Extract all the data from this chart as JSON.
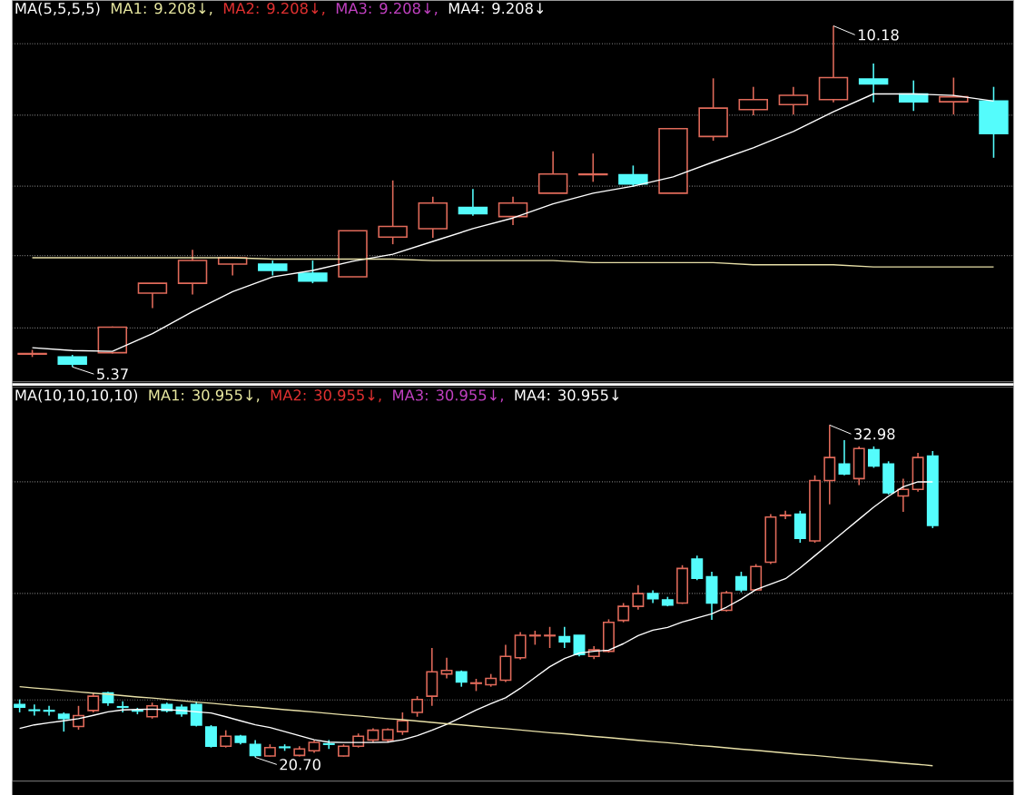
{
  "chart_data": [
    {
      "type": "candlestick",
      "title": "MA(5,5,5,5)",
      "annotations": [
        "MA1: 9.208↓,",
        "MA2: 9.208↓,",
        "MA3: 9.208↓,",
        "MA4: 9.208↓",
        "10.18",
        "5.37"
      ],
      "categories": [
        null,
        null,
        null,
        null,
        null,
        null,
        null,
        null,
        null,
        null,
        null,
        null,
        null,
        null,
        null,
        null,
        null,
        null,
        null,
        null,
        null,
        null,
        null,
        null,
        null
      ],
      "ohlc": [
        [
          5.55,
          5.61,
          5.51,
          5.56
        ],
        [
          5.51,
          5.54,
          5.37,
          5.41
        ],
        [
          5.57,
          5.94,
          5.56,
          5.93
        ],
        [
          6.41,
          6.55,
          6.2,
          6.55
        ],
        [
          6.55,
          7.02,
          6.39,
          6.87
        ],
        [
          6.82,
          6.91,
          6.66,
          6.91
        ],
        [
          6.82,
          6.87,
          6.66,
          6.73
        ],
        [
          6.69,
          6.87,
          6.55,
          6.58
        ],
        [
          6.64,
          7.29,
          6.64,
          7.29
        ],
        [
          7.2,
          8.0,
          7.1,
          7.35
        ],
        [
          7.32,
          7.77,
          7.19,
          7.68
        ],
        [
          7.62,
          7.88,
          7.5,
          7.53
        ],
        [
          7.49,
          7.77,
          7.37,
          7.68
        ],
        [
          7.82,
          8.41,
          7.82,
          8.09
        ],
        [
          8.08,
          8.38,
          7.98,
          8.09
        ],
        [
          8.08,
          8.21,
          7.91,
          7.95
        ],
        [
          7.82,
          8.73,
          7.82,
          8.73
        ],
        [
          8.62,
          9.44,
          8.56,
          9.02
        ],
        [
          9.0,
          9.32,
          8.92,
          9.14
        ],
        [
          9.07,
          9.32,
          8.93,
          9.2
        ],
        [
          9.14,
          10.18,
          9.1,
          9.45
        ],
        [
          9.43,
          9.65,
          9.1,
          9.36
        ],
        [
          9.22,
          9.41,
          8.98,
          9.11
        ],
        [
          9.11,
          9.45,
          8.93,
          9.18
        ],
        [
          9.12,
          9.32,
          8.32,
          8.66
        ]
      ],
      "colors": [
        "#e06a5a",
        "#54fcfc",
        "#e06a5a",
        "#e06a5a",
        "#e06a5a",
        "#e06a5a",
        "#54fcfc",
        "#54fcfc",
        "#e06a5a",
        "#e06a5a",
        "#e06a5a",
        "#54fcfc",
        "#e06a5a",
        "#e06a5a",
        "#e06a5a",
        "#54fcfc",
        "#e06a5a",
        "#e06a5a",
        "#e06a5a",
        "#e06a5a",
        "#e06a5a",
        "#54fcfc",
        "#54fcfc",
        "#e06a5a",
        "#54fcfc"
      ],
      "series": [
        {
          "type": "line",
          "color": "#ffffff",
          "values": [
            5.64,
            5.6,
            5.59,
            5.84,
            6.15,
            6.43,
            6.64,
            6.73,
            6.86,
            6.96,
            7.14,
            7.32,
            7.47,
            7.67,
            7.82,
            7.92,
            8.05,
            8.26,
            8.46,
            8.69,
            8.97,
            9.22,
            9.22,
            9.2,
            9.12
          ]
        },
        {
          "type": "line",
          "color": "#e8e0a8",
          "values": [
            6.91,
            6.91,
            6.91,
            6.91,
            6.91,
            6.91,
            6.89,
            6.89,
            6.89,
            6.89,
            6.87,
            6.87,
            6.87,
            6.87,
            6.84,
            6.84,
            6.84,
            6.84,
            6.81,
            6.81,
            6.81,
            6.78,
            6.78,
            6.78,
            6.78
          ]
        }
      ],
      "ylim": [
        5.16,
        10.54
      ],
      "yticks": [
        {
          "value": 5.92,
          "label": null
        },
        {
          "value": 6.94,
          "label": null
        },
        {
          "value": 7.92,
          "label": null
        },
        {
          "value": 8.92,
          "label": null
        },
        {
          "value": 9.93,
          "label": null
        }
      ],
      "grid": "y"
    },
    {
      "type": "candlestick",
      "title": "MA(10,10,10,10)",
      "annotations": [
        "MA1: 30.955↓,",
        "MA2: 30.955↓,",
        "MA3: 30.955↓,",
        "MA4: 30.955↓",
        "32.98",
        "20.70"
      ],
      "categories": [
        null,
        null,
        null,
        null,
        null,
        null,
        null,
        null,
        null,
        null,
        null,
        null,
        null,
        null,
        null,
        null,
        null,
        null,
        null,
        null,
        null,
        null,
        null,
        null,
        null,
        null,
        null,
        null,
        null,
        null,
        null,
        null,
        null,
        null,
        null,
        null,
        null,
        null,
        null,
        null,
        null,
        null,
        null,
        null,
        null,
        null,
        null,
        null,
        null,
        null,
        null,
        null,
        null,
        null,
        null,
        null,
        null,
        null,
        null,
        null,
        null,
        null,
        null
      ],
      "ohlc": [
        [
          22.65,
          22.84,
          22.36,
          22.55
        ],
        [
          22.45,
          22.65,
          22.24,
          22.43
        ],
        [
          22.43,
          22.6,
          22.24,
          22.41
        ],
        [
          22.29,
          22.36,
          21.65,
          22.13
        ],
        [
          21.84,
          22.6,
          21.72,
          22.24
        ],
        [
          22.43,
          23.08,
          22.36,
          22.96
        ],
        [
          23.08,
          23.12,
          22.6,
          22.72
        ],
        [
          22.57,
          22.77,
          22.36,
          22.55
        ],
        [
          22.43,
          22.53,
          22.29,
          22.41
        ],
        [
          22.2,
          22.72,
          22.13,
          22.6
        ],
        [
          22.65,
          22.72,
          22.36,
          22.43
        ],
        [
          22.55,
          22.65,
          22.2,
          22.31
        ],
        [
          22.65,
          22.77,
          21.84,
          21.89
        ],
        [
          21.82,
          21.89,
          21.06,
          21.11
        ],
        [
          21.11,
          21.7,
          21.06,
          21.48
        ],
        [
          21.48,
          21.53,
          21.18,
          21.25
        ],
        [
          21.18,
          21.34,
          20.7,
          20.77
        ],
        [
          20.75,
          21.18,
          20.73,
          21.06
        ],
        [
          21.08,
          21.18,
          20.94,
          21.06
        ],
        [
          20.77,
          21.11,
          20.73,
          21.01
        ],
        [
          20.94,
          21.34,
          20.87,
          21.25
        ],
        [
          21.2,
          21.34,
          21.01,
          21.18
        ],
        [
          20.75,
          21.18,
          20.73,
          21.11
        ],
        [
          21.11,
          21.58,
          21.06,
          21.48
        ],
        [
          21.34,
          21.77,
          21.25,
          21.7
        ],
        [
          21.34,
          21.77,
          21.25,
          21.72
        ],
        [
          21.65,
          22.36,
          21.53,
          22.05
        ],
        [
          22.36,
          22.96,
          22.2,
          22.84
        ],
        [
          22.96,
          24.74,
          22.6,
          23.86
        ],
        [
          23.78,
          24.38,
          23.62,
          23.91
        ],
        [
          23.86,
          23.91,
          23.31,
          23.48
        ],
        [
          23.43,
          23.6,
          23.15,
          23.45
        ],
        [
          23.38,
          23.78,
          23.31,
          23.62
        ],
        [
          23.55,
          24.86,
          23.48,
          24.43
        ],
        [
          24.38,
          25.33,
          24.31,
          25.21
        ],
        [
          25.19,
          25.38,
          24.86,
          25.21
        ],
        [
          25.19,
          25.52,
          24.74,
          25.21
        ],
        [
          25.16,
          25.52,
          24.74,
          24.97
        ],
        [
          25.21,
          25.21,
          24.43,
          24.5
        ],
        [
          24.43,
          24.81,
          24.33,
          24.67
        ],
        [
          24.62,
          25.8,
          24.57,
          25.69
        ],
        [
          25.76,
          26.4,
          25.69,
          26.28
        ],
        [
          26.28,
          27.06,
          26.16,
          26.75
        ],
        [
          26.75,
          26.87,
          26.4,
          26.56
        ],
        [
          26.52,
          26.63,
          26.28,
          26.33
        ],
        [
          26.4,
          27.8,
          26.37,
          27.68
        ],
        [
          28.03,
          28.15,
          27.25,
          27.32
        ],
        [
          27.37,
          27.56,
          25.78,
          26.4
        ],
        [
          26.13,
          26.85,
          26.09,
          26.78
        ],
        [
          27.37,
          27.56,
          26.8,
          26.89
        ],
        [
          26.89,
          27.84,
          26.85,
          27.75
        ],
        [
          27.91,
          29.69,
          27.84,
          29.58
        ],
        [
          29.63,
          29.81,
          29.5,
          29.65
        ],
        [
          29.69,
          29.81,
          28.63,
          28.79
        ],
        [
          28.7,
          31.12,
          28.63,
          30.93
        ],
        [
          30.93,
          32.98,
          30.05,
          31.78
        ],
        [
          31.54,
          32.42,
          31.12,
          31.17
        ],
        [
          31.0,
          32.19,
          30.76,
          32.11
        ],
        [
          32.07,
          32.19,
          31.4,
          31.47
        ],
        [
          31.54,
          31.64,
          30.41,
          30.48
        ],
        [
          30.36,
          31.0,
          29.77,
          30.6
        ],
        [
          30.6,
          31.95,
          30.52,
          31.78
        ],
        [
          31.83,
          32.02,
          29.17,
          29.27
        ]
      ],
      "colors": [
        "#54fcfc",
        "#54fcfc",
        "#54fcfc",
        "#54fcfc",
        "#e06a5a",
        "#e06a5a",
        "#54fcfc",
        "#54fcfc",
        "#54fcfc",
        "#e06a5a",
        "#54fcfc",
        "#54fcfc",
        "#54fcfc",
        "#54fcfc",
        "#e06a5a",
        "#54fcfc",
        "#54fcfc",
        "#e06a5a",
        "#54fcfc",
        "#e06a5a",
        "#e06a5a",
        "#54fcfc",
        "#e06a5a",
        "#e06a5a",
        "#e06a5a",
        "#e06a5a",
        "#e06a5a",
        "#e06a5a",
        "#e06a5a",
        "#e06a5a",
        "#54fcfc",
        "#e06a5a",
        "#e06a5a",
        "#e06a5a",
        "#e06a5a",
        "#e06a5a",
        "#e06a5a",
        "#54fcfc",
        "#54fcfc",
        "#e06a5a",
        "#e06a5a",
        "#e06a5a",
        "#e06a5a",
        "#54fcfc",
        "#54fcfc",
        "#e06a5a",
        "#54fcfc",
        "#54fcfc",
        "#e06a5a",
        "#54fcfc",
        "#e06a5a",
        "#e06a5a",
        "#e06a5a",
        "#54fcfc",
        "#e06a5a",
        "#e06a5a",
        "#54fcfc",
        "#e06a5a",
        "#54fcfc",
        "#54fcfc",
        "#e06a5a",
        "#e06a5a",
        "#54fcfc"
      ],
      "series": [
        {
          "type": "line",
          "color": "#ffffff",
          "values": [
            21.77,
            21.9,
            21.98,
            22.05,
            22.13,
            22.25,
            22.38,
            22.45,
            22.47,
            22.48,
            22.46,
            22.43,
            22.38,
            22.34,
            22.2,
            22.05,
            21.9,
            21.8,
            21.65,
            21.5,
            21.35,
            21.26,
            21.25,
            21.25,
            21.25,
            21.26,
            21.35,
            21.5,
            21.7,
            21.92,
            22.18,
            22.45,
            22.68,
            22.9,
            23.25,
            23.65,
            24.05,
            24.35,
            24.55,
            24.62,
            24.66,
            24.9,
            25.2,
            25.4,
            25.5,
            25.7,
            25.85,
            26.0,
            26.25,
            26.55,
            26.9,
            27.1,
            27.3,
            27.7,
            28.15,
            28.6,
            29.05,
            29.5,
            29.95,
            30.35,
            30.7,
            30.88,
            30.88
          ]
        },
        {
          "type": "line",
          "color": "#e8e0a8",
          "values": [
            23.31,
            23.26,
            23.22,
            23.17,
            23.12,
            23.07,
            23.03,
            22.98,
            22.93,
            22.89,
            22.84,
            22.79,
            22.74,
            22.7,
            22.65,
            22.6,
            22.56,
            22.51,
            22.46,
            22.42,
            22.37,
            22.32,
            22.27,
            22.23,
            22.18,
            22.13,
            22.09,
            22.04,
            21.99,
            21.94,
            21.9,
            21.85,
            21.8,
            21.76,
            21.71,
            21.66,
            21.61,
            21.57,
            21.52,
            21.47,
            21.43,
            21.38,
            21.33,
            21.28,
            21.24,
            21.19,
            21.14,
            21.1,
            21.05,
            21.0,
            20.96,
            20.91,
            20.86,
            20.81,
            20.77,
            20.72,
            20.67,
            20.63,
            20.58,
            20.53,
            20.48,
            20.44,
            20.39
          ]
        }
      ],
      "ylim": [
        19.82,
        34.38
      ],
      "yticks": [
        {
          "value": 22.82,
          "label": null
        },
        {
          "value": 26.76,
          "label": null
        },
        {
          "value": 30.88,
          "label": null
        }
      ],
      "grid": "y"
    }
  ]
}
